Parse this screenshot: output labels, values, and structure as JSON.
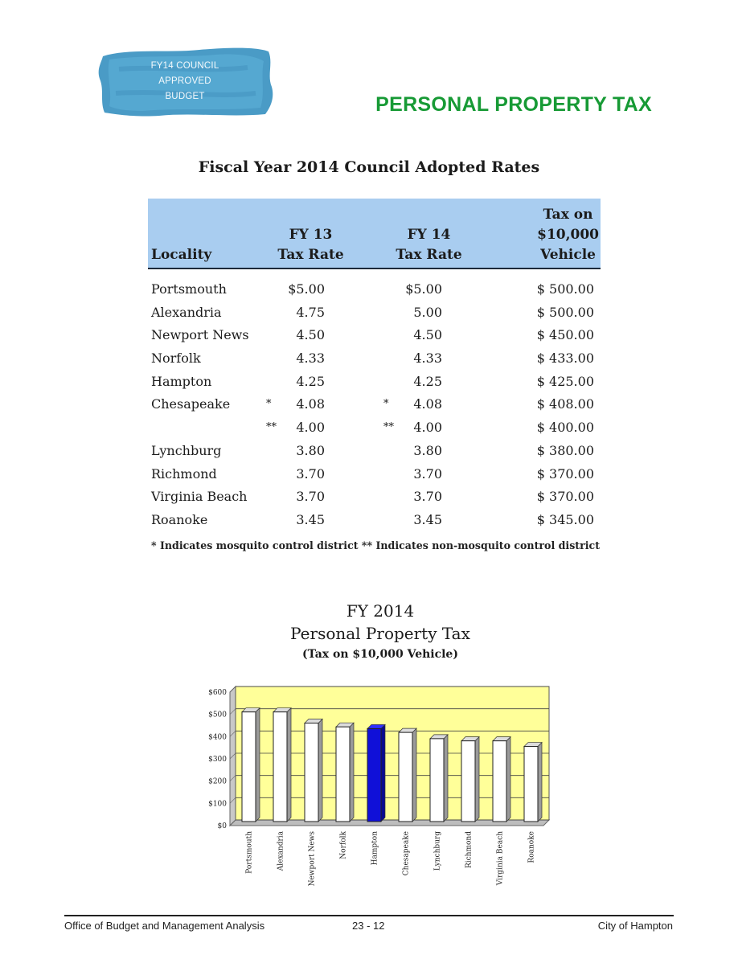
{
  "header": {
    "badge_lines": [
      "FY14 COUNCIL",
      "APPROVED",
      "BUDGET"
    ],
    "title": "PERSONAL PROPERTY TAX",
    "colors": {
      "badge_blue": "#4a9bc6",
      "title_green": "#179a35"
    }
  },
  "rates_table": {
    "title": "Fiscal Year 2014 Council Adopted Rates",
    "columns": {
      "locality": "Locality",
      "fy13": [
        "FY 13",
        "Tax Rate"
      ],
      "fy14": [
        "FY 14",
        "Tax Rate"
      ],
      "tax": [
        "Tax on",
        "$10,000",
        "Vehicle"
      ]
    },
    "rows": [
      {
        "locality": "Portsmouth",
        "fy13_mark": "",
        "fy13": "$5.00",
        "fy14_mark": "",
        "fy14": "$5.00",
        "tax": "$ 500.00"
      },
      {
        "locality": "Alexandria",
        "fy13_mark": "",
        "fy13": "4.75",
        "fy14_mark": "",
        "fy14": "5.00",
        "tax": "$ 500.00"
      },
      {
        "locality": "Newport News",
        "fy13_mark": "",
        "fy13": "4.50",
        "fy14_mark": "",
        "fy14": "4.50",
        "tax": "$ 450.00"
      },
      {
        "locality": "Norfolk",
        "fy13_mark": "",
        "fy13": "4.33",
        "fy14_mark": "",
        "fy14": "4.33",
        "tax": "$ 433.00"
      },
      {
        "locality": "Hampton",
        "fy13_mark": "",
        "fy13": "4.25",
        "fy14_mark": "",
        "fy14": "4.25",
        "tax": "$ 425.00"
      },
      {
        "locality": "Chesapeake",
        "fy13_mark": "*",
        "fy13": "4.08",
        "fy14_mark": "*",
        "fy14": "4.08",
        "tax": "$ 408.00"
      },
      {
        "locality": "",
        "fy13_mark": "**",
        "fy13": "4.00",
        "fy14_mark": "**",
        "fy14": "4.00",
        "tax": "$ 400.00"
      },
      {
        "locality": "Lynchburg",
        "fy13_mark": "",
        "fy13": "3.80",
        "fy14_mark": "",
        "fy14": "3.80",
        "tax": "$ 380.00"
      },
      {
        "locality": "Richmond",
        "fy13_mark": "",
        "fy13": "3.70",
        "fy14_mark": "",
        "fy14": "3.70",
        "tax": "$ 370.00"
      },
      {
        "locality": "Virginia Beach",
        "fy13_mark": "",
        "fy13": "3.70",
        "fy14_mark": "",
        "fy14": "3.70",
        "tax": "$ 370.00"
      },
      {
        "locality": "Roanoke",
        "fy13_mark": "",
        "fy13": "3.45",
        "fy14_mark": "",
        "fy14": "3.45",
        "tax": "$ 345.00"
      }
    ],
    "footnote": "* Indicates mosquito control district  ** Indicates non-mosquito control district",
    "colors": {
      "header_bg": "#a9cdf0"
    }
  },
  "chart_titles": [
    "FY 2014",
    "Personal Property Tax",
    "(Tax on $10,000 Vehicle)"
  ],
  "chart_data": {
    "type": "bar",
    "title": "FY 2014 Personal Property Tax (Tax on $10,000 Vehicle)",
    "categories": [
      "Portsmouth",
      "Alexandria",
      "Newport News",
      "Norfolk",
      "Hampton",
      "Chesapeake",
      "Lynchburg",
      "Richmond",
      "Virginia Beach",
      "Roanoke"
    ],
    "values": [
      500,
      500,
      450,
      433,
      425,
      408,
      380,
      370,
      370,
      345
    ],
    "yticks": [
      "$600",
      "$500",
      "$400",
      "$300",
      "$200",
      "$100",
      "$0"
    ],
    "ylim": [
      0,
      600
    ],
    "highlight": "Hampton",
    "grid": true,
    "legend": "none",
    "colors": {
      "bar": "#ffffff",
      "highlight": "#1010d8",
      "plot_bg": "#ffff99"
    }
  },
  "footer": {
    "left": "Office of Budget and Management Analysis",
    "center": "23 - 12",
    "right": "City of Hampton"
  }
}
